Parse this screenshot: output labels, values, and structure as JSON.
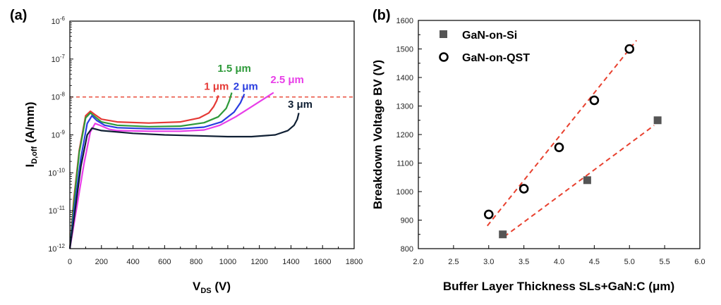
{
  "chart_data": [
    {
      "panel": "(a)",
      "type": "line",
      "xlabel": "V",
      "xlabel_sub": "DS",
      "xlabel_unit": " (V)",
      "ylabel": "I",
      "ylabel_sub": "D,off",
      "ylabel_unit": " (A/mm)",
      "xlim": [
        0,
        1800
      ],
      "ylim": [
        1e-12,
        1e-06
      ],
      "yscale": "log",
      "xticks": [
        "0",
        "200",
        "400",
        "600",
        "800",
        "1000",
        "1200",
        "1400",
        "1600",
        "1800"
      ],
      "xtick_values": [
        0,
        200,
        400,
        600,
        800,
        1000,
        1200,
        1400,
        1600,
        1800
      ],
      "yticks": [
        {
          "value": 1e-12,
          "base": "10",
          "exp": "-12"
        },
        {
          "value": 1e-11,
          "base": "10",
          "exp": "-11"
        },
        {
          "value": 1e-10,
          "base": "10",
          "exp": "-10"
        },
        {
          "value": 1e-09,
          "base": "10",
          "exp": "-9"
        },
        {
          "value": 1e-08,
          "base": "10",
          "exp": "-8"
        },
        {
          "value": 1e-07,
          "base": "10",
          "exp": "-7"
        },
        {
          "value": 1e-06,
          "base": "10",
          "exp": "-6"
        }
      ],
      "reference_line": {
        "y": 1e-08,
        "color": "#e8412f"
      },
      "series": [
        {
          "name": "1 μm",
          "color": "#e53935",
          "x": [
            0,
            25,
            60,
            100,
            130,
            160,
            200,
            300,
            500,
            700,
            820,
            880,
            910,
            930,
            940
          ],
          "y": [
            1e-12,
            2e-11,
            4e-10,
            3.2e-09,
            4.2e-09,
            3.4e-09,
            2.6e-09,
            2.2e-09,
            2.05e-09,
            2.2e-09,
            2.8e-09,
            3.8e-09,
            5.5e-09,
            8e-09,
            1.1e-08
          ]
        },
        {
          "name": "1.5 μm",
          "color": "#2e9a3a",
          "x": [
            0,
            25,
            60,
            100,
            130,
            160,
            200,
            300,
            500,
            700,
            850,
            940,
            990,
            1010,
            1025
          ],
          "y": [
            1e-12,
            1.5e-11,
            3.5e-10,
            2.8e-09,
            3.8e-09,
            3e-09,
            2.2e-09,
            1.8e-09,
            1.65e-09,
            1.7e-09,
            2.1e-09,
            3e-09,
            5e-09,
            8e-09,
            1.3e-08
          ]
        },
        {
          "name": "2 μm",
          "color": "#2a3de0",
          "x": [
            0,
            30,
            70,
            110,
            140,
            170,
            220,
            300,
            500,
            700,
            850,
            960,
            1040,
            1080,
            1105
          ],
          "y": [
            1e-12,
            1.2e-11,
            2.5e-10,
            2e-09,
            3.2e-09,
            2.4e-09,
            1.8e-09,
            1.55e-09,
            1.45e-09,
            1.45e-09,
            1.6e-09,
            2.2e-09,
            4e-09,
            7e-09,
            1.2e-08
          ]
        },
        {
          "name": "2.5 μm",
          "color": "#e83ee8",
          "x": [
            0,
            40,
            90,
            130,
            160,
            190,
            250,
            300,
            500,
            700,
            850,
            950,
            1050,
            1150,
            1230,
            1290
          ],
          "y": [
            1e-12,
            1e-11,
            1.8e-10,
            1.2e-09,
            2e-09,
            1.8e-09,
            1.4e-09,
            1.3e-09,
            1.25e-09,
            1.25e-09,
            1.35e-09,
            1.8e-09,
            3e-09,
            5.5e-09,
            9e-09,
            1.3e-08
          ]
        },
        {
          "name": "3 μm",
          "color": "#0f1f33",
          "x": [
            0,
            30,
            70,
            110,
            140,
            200,
            400,
            600,
            800,
            1000,
            1150,
            1300,
            1380,
            1420,
            1440,
            1450
          ],
          "y": [
            1e-12,
            8e-12,
            1.5e-10,
            1e-09,
            1.5e-09,
            1.3e-09,
            1.1e-09,
            1e-09,
            9.5e-10,
            9e-10,
            9e-10,
            1e-09,
            1.3e-09,
            1.8e-09,
            2.6e-09,
            3.8e-09
          ]
        }
      ],
      "curve_labels": [
        {
          "text": "1 μm",
          "color": "#e53935",
          "x": 850,
          "y": 1.55e-08
        },
        {
          "text": "1.5 μm",
          "color": "#2e9a3a",
          "x": 935,
          "y": 4.6e-08
        },
        {
          "text": "2 μm",
          "color": "#2a3de0",
          "x": 1035,
          "y": 1.55e-08
        },
        {
          "text": "2.5 μm",
          "color": "#e83ee8",
          "x": 1270,
          "y": 2.3e-08
        },
        {
          "text": "3 μm",
          "color": "#0f1f33",
          "x": 1380,
          "y": 5.2e-09
        }
      ]
    },
    {
      "panel": "(b)",
      "type": "scatter",
      "xlabel": "Buffer Layer Thickness SLs+GaN:C (μm)",
      "ylabel": "Breakdown Voltage BV (V)",
      "xlim": [
        2.0,
        6.0
      ],
      "ylim": [
        800,
        1600
      ],
      "xticks": [
        "2.0",
        "2.5",
        "3.0",
        "3.5",
        "4.0",
        "4.5",
        "5.0",
        "5.5",
        "6.0"
      ],
      "xtick_values": [
        2.0,
        2.5,
        3.0,
        3.5,
        4.0,
        4.5,
        5.0,
        5.5,
        6.0
      ],
      "yticks": [
        "800",
        "900",
        "1000",
        "1100",
        "1200",
        "1300",
        "1400",
        "1500",
        "1600"
      ],
      "ytick_values": [
        800,
        900,
        1000,
        1100,
        1200,
        1300,
        1400,
        1500,
        1600
      ],
      "legend_position": "top-left",
      "series": [
        {
          "name": "GaN-on-Si",
          "marker": "square",
          "color": "#555555",
          "x": [
            3.2,
            4.4,
            5.4
          ],
          "y": [
            850,
            1040,
            1250
          ],
          "fit": {
            "x": [
              3.22,
              5.35
            ],
            "y": [
              842,
              1232
            ],
            "color": "#e8412f"
          }
        },
        {
          "name": "GaN-on-QST",
          "marker": "circle",
          "color": "#000000",
          "x": [
            3.0,
            3.5,
            4.0,
            4.5,
            5.0
          ],
          "y": [
            920,
            1010,
            1155,
            1320,
            1500
          ],
          "fit": {
            "x": [
              2.98,
              5.1
            ],
            "y": [
              880,
              1530
            ],
            "color": "#e8412f"
          }
        }
      ]
    }
  ]
}
